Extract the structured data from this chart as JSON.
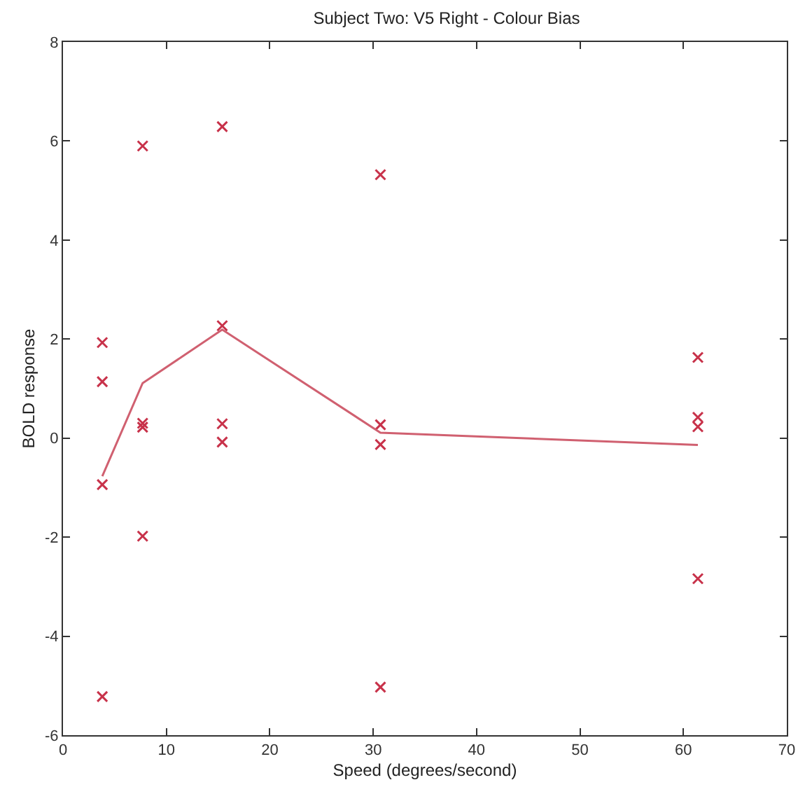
{
  "chart_data": {
    "type": "scatter",
    "title": "Subject Two: V5 Right - Colour Bias",
    "xlabel": "Speed (degrees/second)",
    "ylabel": "BOLD response",
    "series": [
      {
        "color": "#c8324a",
        "marker": "cross",
        "x": [
          3.8,
          3.8,
          3.8,
          3.8,
          7.7,
          7.7,
          7.7,
          7.7,
          15.4,
          15.4,
          15.4,
          15.4,
          30.7,
          30.7,
          30.7,
          30.7,
          61.4,
          61.4,
          61.4,
          61.4
        ],
        "values": [
          1.93,
          1.14,
          -0.94,
          -5.22,
          5.9,
          0.3,
          0.22,
          -1.98,
          6.29,
          2.27,
          0.29,
          -0.08,
          5.32,
          0.27,
          -0.13,
          -5.03,
          1.63,
          0.42,
          0.23,
          -2.84
        ]
      },
      {
        "type": "line",
        "color": "#d06070",
        "marker": "none",
        "line_style": "solid",
        "x": [
          3.8,
          7.7,
          15.4,
          30.7,
          61.4
        ],
        "values": [
          -0.77,
          1.11,
          2.19,
          0.11,
          -0.14
        ]
      }
    ],
    "xlim": [
      0,
      70
    ],
    "xticks": [
      0,
      10,
      20,
      30,
      40,
      50,
      60,
      70
    ],
    "ylim": [
      -6,
      8
    ],
    "yticks": [
      -6,
      -4,
      -2,
      0,
      2,
      4,
      6,
      8
    ]
  }
}
